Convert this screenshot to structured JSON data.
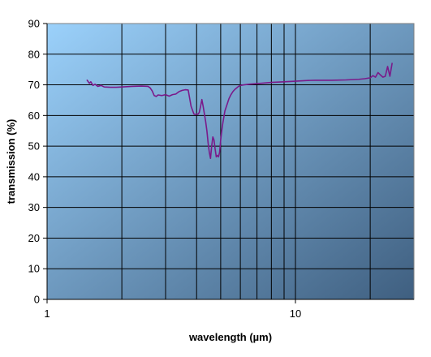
{
  "chart_data": {
    "type": "line",
    "title": "",
    "xlabel": "wavelength (µm)",
    "ylabel": "transmission (%)",
    "x_scale": "log",
    "xlim": [
      1,
      30
    ],
    "ylim": [
      0,
      90
    ],
    "x_ticks": [
      1,
      10
    ],
    "x_tick_labels": [
      "1",
      "10"
    ],
    "x_gridlines": [
      1,
      2,
      3,
      4,
      5,
      6,
      7,
      8,
      9,
      10,
      20
    ],
    "y_ticks": [
      0,
      10,
      20,
      30,
      40,
      50,
      60,
      70,
      80,
      90
    ],
    "grid": true,
    "legend": "none",
    "background": {
      "gradient_from": "#9bd1fb",
      "gradient_to": "#3f5f80"
    },
    "series": [
      {
        "color": "#7b1a8a",
        "x": [
          1.45,
          1.48,
          1.5,
          1.53,
          1.56,
          1.6,
          1.65,
          1.7,
          1.8,
          1.9,
          2.0,
          2.2,
          2.4,
          2.55,
          2.6,
          2.65,
          2.7,
          2.75,
          2.8,
          2.9,
          3.0,
          3.1,
          3.2,
          3.3,
          3.4,
          3.5,
          3.6,
          3.7,
          3.8,
          3.9,
          3.95,
          4.0,
          4.05,
          4.1,
          4.15,
          4.2,
          4.25,
          4.3,
          4.35,
          4.4,
          4.45,
          4.5,
          4.55,
          4.6,
          4.65,
          4.7,
          4.75,
          4.8,
          4.85,
          4.9,
          4.95,
          5.0,
          5.05,
          5.1,
          5.15,
          5.2,
          5.3,
          5.4,
          5.5,
          5.6,
          5.7,
          5.8,
          5.9,
          6.0,
          6.2,
          6.5,
          7.0,
          7.5,
          8.0,
          9.0,
          10.0,
          11.0,
          12.0,
          14.0,
          16.0,
          18.0,
          19.0,
          20.0,
          20.5,
          21.0,
          21.5,
          22.0,
          22.5,
          23.0,
          23.5,
          24.0,
          24.5
        ],
        "values": [
          71.5,
          70.5,
          71.0,
          69.8,
          70.2,
          69.5,
          69.8,
          69.3,
          69.2,
          69.2,
          69.3,
          69.5,
          69.6,
          69.5,
          69.0,
          68.0,
          66.5,
          66.2,
          66.7,
          66.5,
          66.8,
          66.3,
          66.8,
          67.0,
          67.8,
          68.2,
          68.4,
          68.3,
          63.0,
          60.5,
          60.3,
          60.5,
          60.4,
          61.0,
          63.0,
          65.2,
          63.0,
          60.5,
          58.0,
          55.0,
          51.0,
          48.0,
          46.0,
          50.0,
          53.0,
          52.0,
          49.0,
          46.5,
          47.0,
          46.5,
          48.0,
          52.0,
          55.0,
          57.5,
          59.5,
          61.5,
          63.5,
          65.5,
          66.8,
          67.8,
          68.5,
          69.0,
          69.5,
          69.8,
          70.0,
          70.2,
          70.4,
          70.6,
          70.8,
          71.0,
          71.2,
          71.4,
          71.5,
          71.5,
          71.6,
          71.8,
          72.0,
          72.3,
          73.0,
          72.5,
          74.0,
          73.2,
          72.5,
          72.8,
          76.0,
          72.8,
          77.0
        ]
      }
    ]
  }
}
